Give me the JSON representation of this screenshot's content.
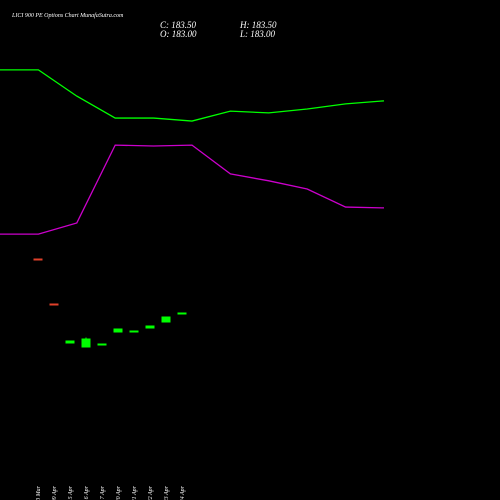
{
  "chart_data": [
    {
      "type": "candlestick",
      "title": "LICI 900  PE Options  Chart MunafaSutra.com",
      "summary": [
        "C: 183.50",
        "H: 183.50",
        "O: 183.00",
        "L: 183.00"
      ],
      "categories": [
        "30 Mar",
        "09 Apr",
        "15 Apr",
        "16 Apr",
        "17 Apr",
        "20 Apr",
        "21 Apr",
        "22 Apr",
        "23 Apr",
        "24 Apr"
      ],
      "open": [
        210.5,
        188,
        168,
        166,
        167.5,
        173.5,
        174,
        175.5,
        178.5,
        183
      ],
      "high": [
        210.5,
        188,
        169.5,
        171,
        168,
        175.5,
        174.5,
        177,
        181.5,
        183.5
      ],
      "low": [
        209.5,
        187.5,
        168,
        166,
        167.5,
        173.5,
        174,
        175.5,
        178.5,
        183
      ],
      "close": [
        209.5,
        187.5,
        169.5,
        170.5,
        168,
        175.5,
        174.5,
        177,
        181.5,
        183.5
      ],
      "up_color": "#00ff00",
      "down_color": "#e0402a",
      "ylim": [
        114.75,
        329.75
      ]
    },
    {
      "type": "line",
      "series": [
        {
          "color": "#00ff00",
          "values": [
            88.4,
            88.4,
            82.3,
            77.2,
            77.2,
            76.5,
            78.8,
            78.4,
            79.3,
            80.5,
            81.2
          ]
        },
        {
          "color": "#cc00cc",
          "values": [
            50.2,
            50.2,
            52.8,
            70.9,
            70.7,
            70.9,
            64.2,
            62.6,
            60.7,
            56.5,
            56.3
          ]
        }
      ],
      "ylim": [
        0,
        100
      ]
    }
  ]
}
